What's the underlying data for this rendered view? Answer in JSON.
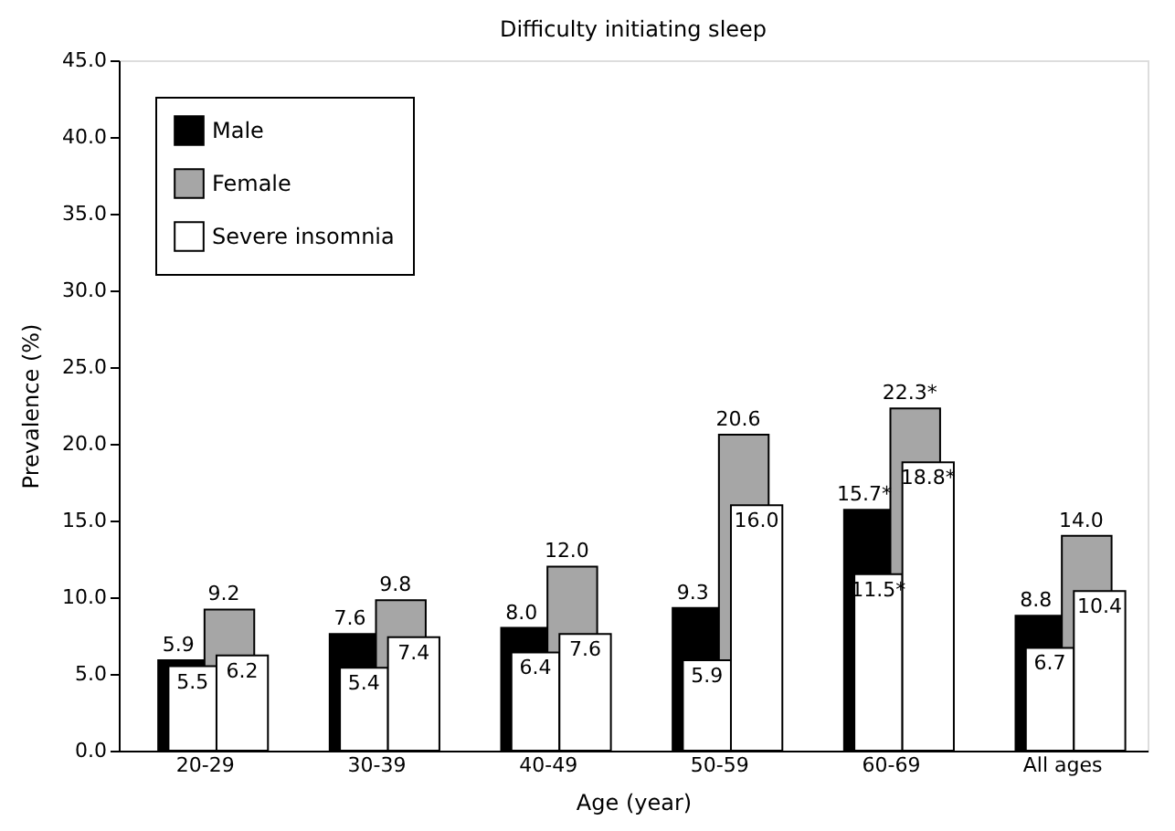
{
  "chart_data": {
    "type": "bar",
    "title": "Difficulty initiating sleep",
    "xlabel": "Age (year)",
    "ylabel": "Prevalence (%)",
    "categories": [
      "20-29",
      "30-39",
      "40-49",
      "50-59",
      "60-69",
      "All ages"
    ],
    "series": [
      {
        "name": "Male",
        "color": "#000000",
        "values": [
          5.9,
          7.6,
          8.0,
          9.3,
          15.7,
          8.8
        ],
        "value_labels": [
          "5.9",
          "7.6",
          "8.0",
          "9.3",
          "15.7*",
          "8.8"
        ]
      },
      {
        "name": "Female",
        "color": "#a6a6a6",
        "values": [
          9.2,
          9.8,
          12.0,
          20.6,
          22.3,
          14.0
        ],
        "value_labels": [
          "9.2",
          "9.8",
          "12.0",
          "20.6",
          "22.3*",
          "14.0"
        ]
      },
      {
        "name": "Severe insomnia",
        "color": "#ffffff",
        "values": [
          5.5,
          5.4,
          6.4,
          5.9,
          11.5,
          6.7
        ],
        "value_labels": [
          "5.5",
          "5.4",
          "6.4",
          "5.9",
          "11.5*",
          "6.7"
        ]
      },
      {
        "color": "#ffffff",
        "values": [
          6.2,
          7.4,
          7.6,
          16.0,
          18.8,
          10.4
        ],
        "value_labels": [
          "6.2",
          "7.4",
          "7.6",
          "16.0",
          "18.8*",
          "10.4"
        ]
      }
    ],
    "ylim": [
      0,
      45
    ],
    "yticks": [
      {
        "value": 0,
        "label": "0.0"
      },
      {
        "value": 5,
        "label": "5.0"
      },
      {
        "value": 10,
        "label": "10.0"
      },
      {
        "value": 15,
        "label": "15.0"
      },
      {
        "value": 20,
        "label": "20.0"
      },
      {
        "value": 25,
        "label": "25.0"
      },
      {
        "value": 30,
        "label": "30.0"
      },
      {
        "value": 35,
        "label": "35.0"
      },
      {
        "value": 40,
        "label": "40.0"
      },
      {
        "value": 45,
        "label": "45.0"
      }
    ],
    "grid": false,
    "legend": "top left"
  }
}
